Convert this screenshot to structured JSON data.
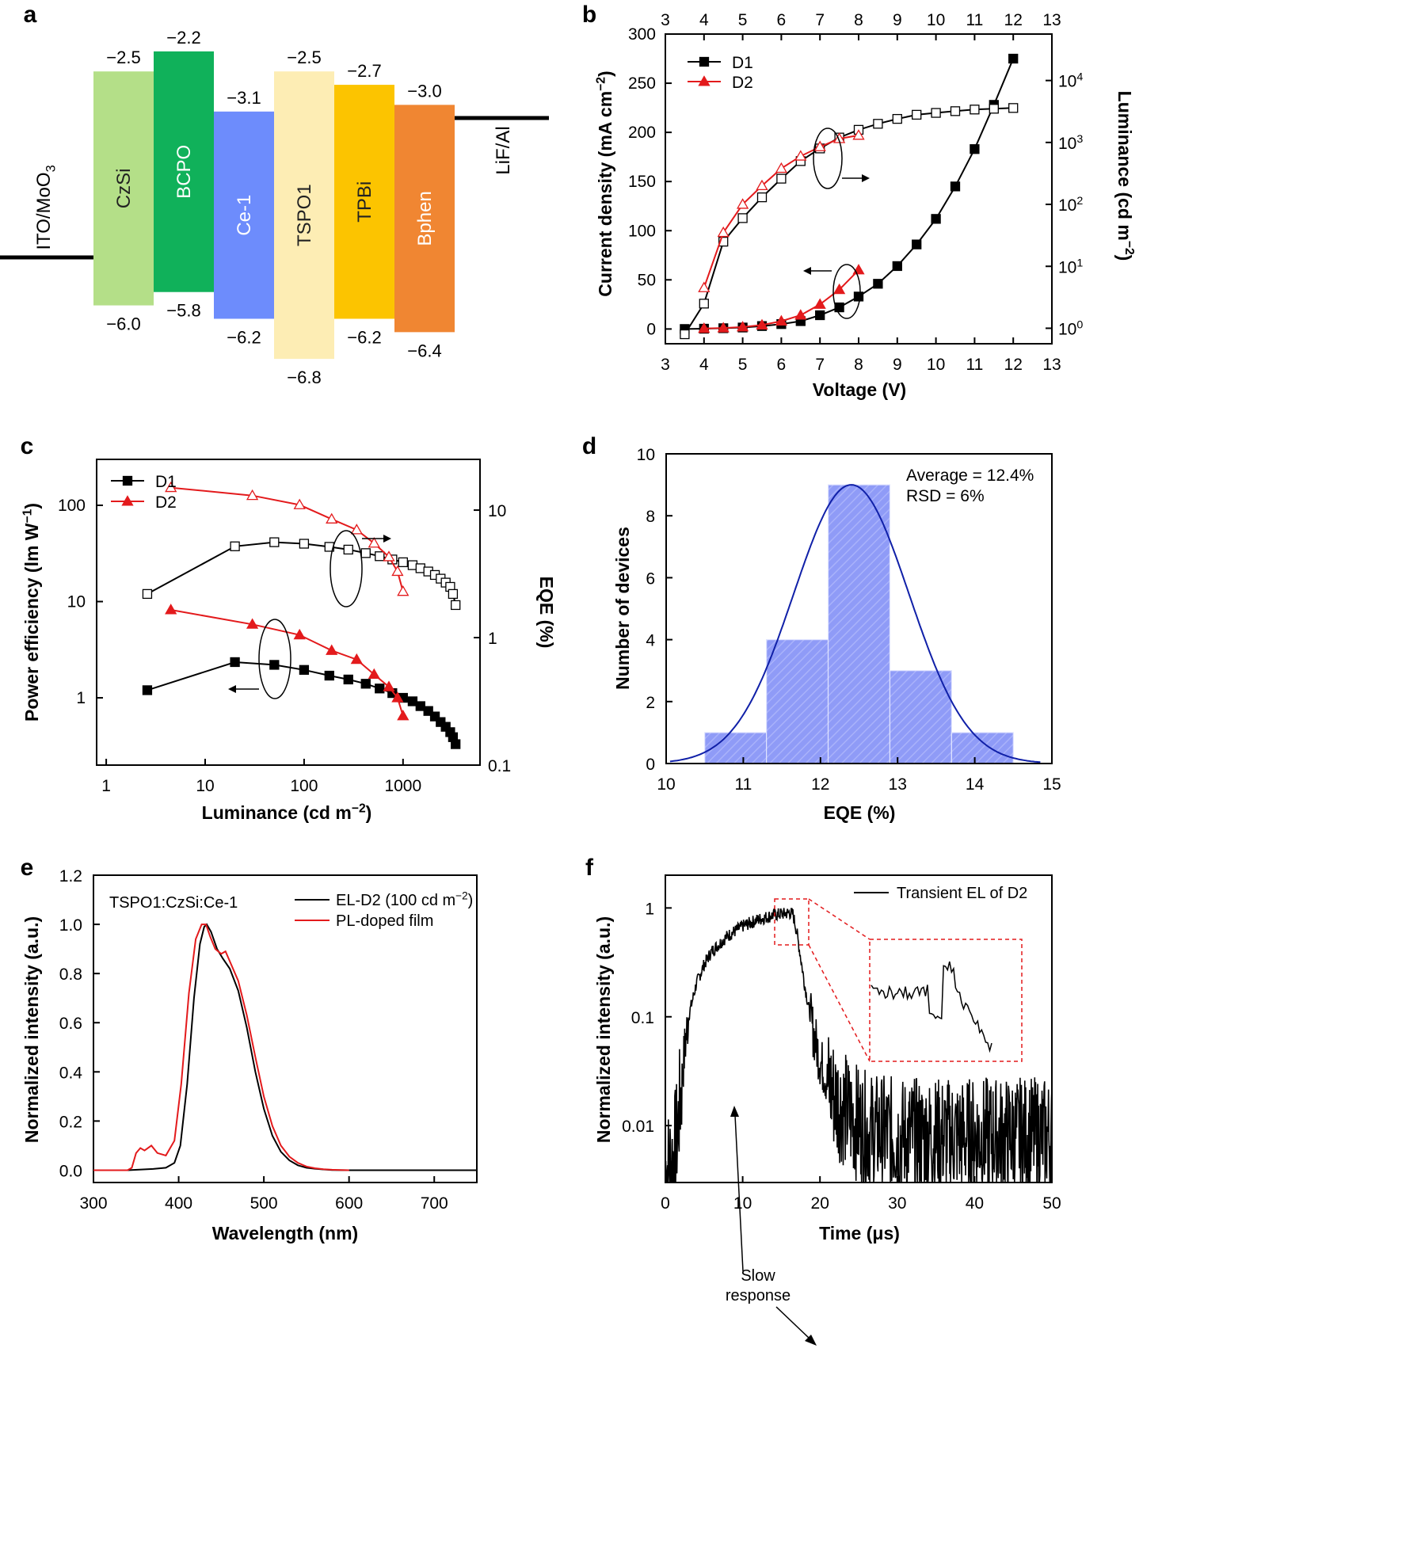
{
  "chart_data": [
    {
      "panel": "a",
      "type": "energy-level-diagram",
      "left_electrode": "ITO/MoO3",
      "right_electrode": "LiF/Al",
      "layers": [
        {
          "name": "CzSi",
          "lumo": -2.5,
          "homo": -6.0,
          "lumo_label": "−2.5",
          "homo_label": "−6.0",
          "color": "#b4df88",
          "text_color": "#222222"
        },
        {
          "name": "BCPO",
          "lumo": -2.2,
          "homo": -5.8,
          "lumo_label": "−2.2",
          "homo_label": "−5.8",
          "color": "#10b15a",
          "text_color": "#ffffff"
        },
        {
          "name": "Ce-1",
          "lumo": -3.1,
          "homo": -6.2,
          "lumo_label": "−3.1",
          "homo_label": "−6.2",
          "color": "#6d8cfc",
          "text_color": "#ffffff"
        },
        {
          "name": "TSPO1",
          "lumo": -2.5,
          "homo": -6.8,
          "lumo_label": "−2.5",
          "homo_label": "−6.8",
          "color": "#fdedb4",
          "text_color": "#222222"
        },
        {
          "name": "TPBi",
          "lumo": -2.7,
          "homo": -6.2,
          "lumo_label": "−2.7",
          "homo_label": "−6.2",
          "color": "#fcc400",
          "text_color": "#222222"
        },
        {
          "name": "Bphen",
          "lumo": -3.0,
          "homo": -6.4,
          "lumo_label": "−3.0",
          "homo_label": "−6.4",
          "color": "#f08632",
          "text_color": "#ffffff"
        }
      ]
    },
    {
      "panel": "b",
      "type": "line",
      "xlabel": "Voltage (V)",
      "ylabel_left": "Current density (mA cm−2)",
      "ylabel_right": "Luminance (cd m−2)",
      "xlim": [
        3,
        13
      ],
      "xticks": [
        3,
        4,
        5,
        6,
        7,
        8,
        9,
        10,
        11,
        12,
        13
      ],
      "ylim_left": [
        -15,
        300
      ],
      "yticks_left": [
        0,
        50,
        100,
        150,
        200,
        250,
        300
      ],
      "ylim_right_log10": [
        -0.25,
        4.75
      ],
      "yticks_right": [
        {
          "exp": 0,
          "label": "10",
          "sup": "0"
        },
        {
          "exp": 1,
          "label": "10",
          "sup": "1"
        },
        {
          "exp": 2,
          "label": "10",
          "sup": "2"
        },
        {
          "exp": 3,
          "label": "10",
          "sup": "3"
        },
        {
          "exp": 4,
          "label": "10",
          "sup": "4"
        }
      ],
      "series": [
        {
          "name": "D1",
          "axis": "left",
          "marker": "filled-square",
          "color": "#000000",
          "x": [
            3.5,
            4,
            4.5,
            5,
            5.5,
            6,
            6.5,
            7,
            7.5,
            8,
            8.5,
            9,
            9.5,
            10,
            10.5,
            11,
            11.5,
            12
          ],
          "y": [
            0,
            0.3,
            0.8,
            1.5,
            3,
            5,
            8,
            14,
            22,
            33,
            46,
            64,
            86,
            112,
            145,
            183,
            228,
            275
          ]
        },
        {
          "name": "D2",
          "axis": "left",
          "marker": "filled-triangle",
          "color": "#e31a1c",
          "x": [
            4,
            4.5,
            5,
            5.5,
            6,
            6.5,
            7,
            7.5,
            8
          ],
          "y": [
            0.5,
            1,
            2,
            4,
            8,
            14,
            25,
            40,
            60
          ]
        },
        {
          "name": "D1 luminance",
          "axis": "right",
          "marker": "open-square",
          "color": "#000000",
          "legend": false,
          "x": [
            3.5,
            4,
            4.5,
            5,
            5.5,
            6,
            6.5,
            7,
            7.5,
            8,
            8.5,
            9,
            9.5,
            10,
            10.5,
            11,
            11.5,
            12
          ],
          "y": [
            0.8,
            2.5,
            25,
            60,
            130,
            260,
            500,
            800,
            1200,
            1600,
            2000,
            2400,
            2800,
            3000,
            3200,
            3400,
            3500,
            3600
          ]
        },
        {
          "name": "D2 luminance",
          "axis": "right",
          "marker": "open-triangle",
          "color": "#e31a1c",
          "legend": false,
          "x": [
            4,
            4.5,
            5,
            5.5,
            6,
            6.5,
            7,
            7.5,
            8
          ],
          "y": [
            4.5,
            35,
            100,
            200,
            380,
            600,
            850,
            1150,
            1300
          ]
        }
      ]
    },
    {
      "panel": "c",
      "type": "scatter-line",
      "xlabel": "Luminance (cd m−2)",
      "ylabel_left": "Power efficiency (lm W−1)",
      "ylabel_right": "EQE (%)",
      "xscale": "log",
      "xlim": [
        0.8,
        6000
      ],
      "xticks": [
        {
          "v": 1,
          "label": "1"
        },
        {
          "v": 10,
          "label": "10"
        },
        {
          "v": 100,
          "label": "100"
        },
        {
          "v": 1000,
          "label": "1000"
        }
      ],
      "yscale_left": "log",
      "ylim_left": [
        0.2,
        300
      ],
      "yticks_left": [
        {
          "v": 1,
          "label": "1"
        },
        {
          "v": 10,
          "label": "10"
        },
        {
          "v": 100,
          "label": "100"
        }
      ],
      "yscale_right": "log",
      "ylim_right": [
        0.1,
        25
      ],
      "yticks_right": [
        {
          "v": 0.1,
          "label": "0.1"
        },
        {
          "v": 1,
          "label": "1"
        },
        {
          "v": 10,
          "label": "10"
        }
      ],
      "series": [
        {
          "name": "D1",
          "axis": "left",
          "marker": "filled-square",
          "color": "#000000",
          "x": [
            2.6,
            20,
            50,
            100,
            180,
            280,
            420,
            580,
            780,
            1000,
            1250,
            1500,
            1800,
            2100,
            2400,
            2700,
            3000,
            3200,
            3400
          ],
          "y": [
            1.2,
            2.35,
            2.2,
            1.95,
            1.7,
            1.55,
            1.4,
            1.25,
            1.12,
            1.0,
            0.92,
            0.82,
            0.73,
            0.64,
            0.56,
            0.5,
            0.44,
            0.39,
            0.33
          ]
        },
        {
          "name": "D2",
          "axis": "left",
          "marker": "filled-triangle",
          "color": "#e31a1c",
          "x": [
            4.5,
            30,
            90,
            190,
            340,
            510,
            720,
            880,
            1000
          ],
          "y": [
            8.2,
            5.8,
            4.5,
            3.1,
            2.5,
            1.75,
            1.3,
            1.0,
            0.65
          ]
        },
        {
          "name": "D1 EQE",
          "axis": "right",
          "marker": "open-square",
          "color": "#000000",
          "legend": false,
          "x": [
            2.6,
            20,
            50,
            100,
            180,
            280,
            420,
            580,
            780,
            1000,
            1250,
            1500,
            1800,
            2100,
            2400,
            2700,
            3000,
            3200,
            3400
          ],
          "y": [
            2.2,
            5.2,
            5.6,
            5.45,
            5.15,
            4.9,
            4.6,
            4.35,
            4.1,
            3.9,
            3.7,
            3.5,
            3.3,
            3.1,
            2.9,
            2.7,
            2.5,
            2.2,
            1.8
          ]
        },
        {
          "name": "D2 EQE",
          "axis": "right",
          "marker": "open-triangle",
          "color": "#e31a1c",
          "legend": false,
          "x": [
            4.5,
            30,
            90,
            190,
            340,
            510,
            720,
            880,
            1000
          ],
          "y": [
            15,
            13,
            11,
            8.5,
            7,
            5.5,
            4.3,
            3.3,
            2.3
          ]
        }
      ]
    },
    {
      "panel": "d",
      "type": "bar",
      "subtype": "histogram",
      "xlabel": "EQE (%)",
      "ylabel": "Number of devices",
      "xlim": [
        10,
        15
      ],
      "ylim": [
        0,
        10
      ],
      "xticks": [
        10,
        11,
        12,
        13,
        14,
        15
      ],
      "yticks": [
        0,
        2,
        4,
        6,
        8,
        10
      ],
      "bin_width": 0.8,
      "bin_centers": [
        10.9,
        11.7,
        12.5,
        13.3,
        14.1
      ],
      "values": [
        1,
        4,
        9,
        3,
        1
      ],
      "fit": {
        "type": "gaussian",
        "mean": 12.4,
        "sigma": 0.75,
        "peak": 9
      },
      "annotations": {
        "average": "Average = 12.4%",
        "rsd": "RSD = 6%"
      },
      "bar_color": "#8f9bf7",
      "fit_color": "#1020a8"
    },
    {
      "panel": "e",
      "type": "line",
      "xlabel": "Wavelength (nm)",
      "ylabel": "Normalized intensity (a.u.)",
      "xlim": [
        300,
        750
      ],
      "ylim": [
        -0.05,
        1.2
      ],
      "xticks": [
        300,
        400,
        500,
        600,
        700
      ],
      "yticks": [
        0.0,
        0.2,
        0.4,
        0.6,
        0.8,
        1.0,
        1.2
      ],
      "ytick_labels": [
        "0.0",
        "0.2",
        "0.4",
        "0.6",
        "0.8",
        "1.0",
        "1.2"
      ],
      "annotation": "TSPO1:CzSi:Ce-1",
      "series": [
        {
          "name": "EL-D2 (100 cd m−2)",
          "color": "#000000",
          "x": [
            300,
            340,
            370,
            385,
            395,
            402,
            410,
            418,
            425,
            430,
            433,
            438,
            445,
            452,
            460,
            470,
            480,
            490,
            500,
            510,
            520,
            530,
            540,
            550,
            560,
            570,
            580,
            600,
            650,
            750
          ],
          "y": [
            0,
            0,
            0.005,
            0.01,
            0.03,
            0.1,
            0.35,
            0.7,
            0.92,
            0.99,
            1.0,
            0.97,
            0.9,
            0.86,
            0.82,
            0.73,
            0.58,
            0.4,
            0.25,
            0.14,
            0.075,
            0.04,
            0.02,
            0.01,
            0.006,
            0.003,
            0.001,
            0,
            0,
            0
          ]
        },
        {
          "name": "PL-doped film",
          "color": "#e31a1c",
          "x": [
            300,
            340,
            345,
            350,
            355,
            360,
            368,
            375,
            385,
            395,
            403,
            412,
            420,
            427,
            432,
            437,
            443,
            450,
            455,
            460,
            470,
            480,
            490,
            500,
            510,
            520,
            530,
            540,
            550,
            560,
            570,
            580,
            590,
            600
          ],
          "y": [
            0,
            0,
            0.01,
            0.07,
            0.09,
            0.08,
            0.1,
            0.07,
            0.06,
            0.12,
            0.35,
            0.72,
            0.94,
            1.0,
            1.0,
            0.95,
            0.9,
            0.88,
            0.89,
            0.85,
            0.77,
            0.63,
            0.46,
            0.3,
            0.18,
            0.1,
            0.055,
            0.03,
            0.015,
            0.008,
            0.004,
            0.002,
            0.001,
            0
          ]
        }
      ]
    },
    {
      "panel": "f",
      "type": "line",
      "xlabel": "Time (μs)",
      "ylabel": "Normalized intensity (a.u.)",
      "xlim": [
        0,
        50
      ],
      "yscale": "log",
      "ylim": [
        0.003,
        2
      ],
      "xticks": [
        0,
        10,
        20,
        30,
        40,
        50
      ],
      "yticks": [
        {
          "v": 0.01,
          "label": "0.01"
        },
        {
          "v": 0.1,
          "label": "0.1"
        },
        {
          "v": 1,
          "label": "1"
        }
      ],
      "series": [
        {
          "name": "Transient EL of D2",
          "color": "#000000",
          "x": [
            0,
            1,
            1.5,
            2,
            2.5,
            3,
            4,
            5,
            6,
            8,
            10,
            12,
            14,
            16,
            16.5,
            17,
            17.5,
            18,
            19,
            20,
            21,
            22,
            24,
            26,
            30,
            35,
            40,
            45,
            50
          ],
          "y": [
            0.004,
            0.005,
            0.008,
            0.02,
            0.05,
            0.1,
            0.2,
            0.3,
            0.4,
            0.55,
            0.68,
            0.78,
            0.86,
            0.9,
            0.88,
            0.6,
            0.35,
            0.2,
            0.08,
            0.04,
            0.025,
            0.018,
            0.012,
            0.009,
            0.008,
            0.008,
            0.008,
            0.008,
            0.008
          ]
        }
      ],
      "annotations": {
        "slow_response_line1": "Slow",
        "slow_response_line2": "response"
      }
    }
  ],
  "labels": {
    "panel_a": "a",
    "panel_b": "b",
    "panel_c": "c",
    "panel_d": "d",
    "panel_e": "e",
    "panel_f": "f",
    "b_legend_d1": "D1",
    "b_legend_d2": "D2",
    "c_legend_d1": "D1",
    "c_legend_d2": "D2",
    "b_ylabel_left_main": "Current density (mA cm",
    "b_ylabel_left_sup": "−2",
    "b_ylabel_left_end": ")",
    "b_ylabel_right_main": "Luminance (cd m",
    "b_ylabel_right_sup": "−2",
    "b_ylabel_right_end": ")",
    "c_xlabel_main": "Luminance (cd m",
    "c_xlabel_sup": "−2",
    "c_xlabel_end": ")",
    "c_ylabel_left_main": "Power efficiency (lm W",
    "c_ylabel_left_sup": "−1",
    "c_ylabel_left_end": ")",
    "e_legend_el_main": "EL-D2 (100 cd m",
    "e_legend_el_sup": "−2",
    "e_legend_el_end": ")",
    "e_legend_pl": "PL-doped film",
    "a_left_main": "ITO/MoO",
    "a_left_sub": "3"
  }
}
